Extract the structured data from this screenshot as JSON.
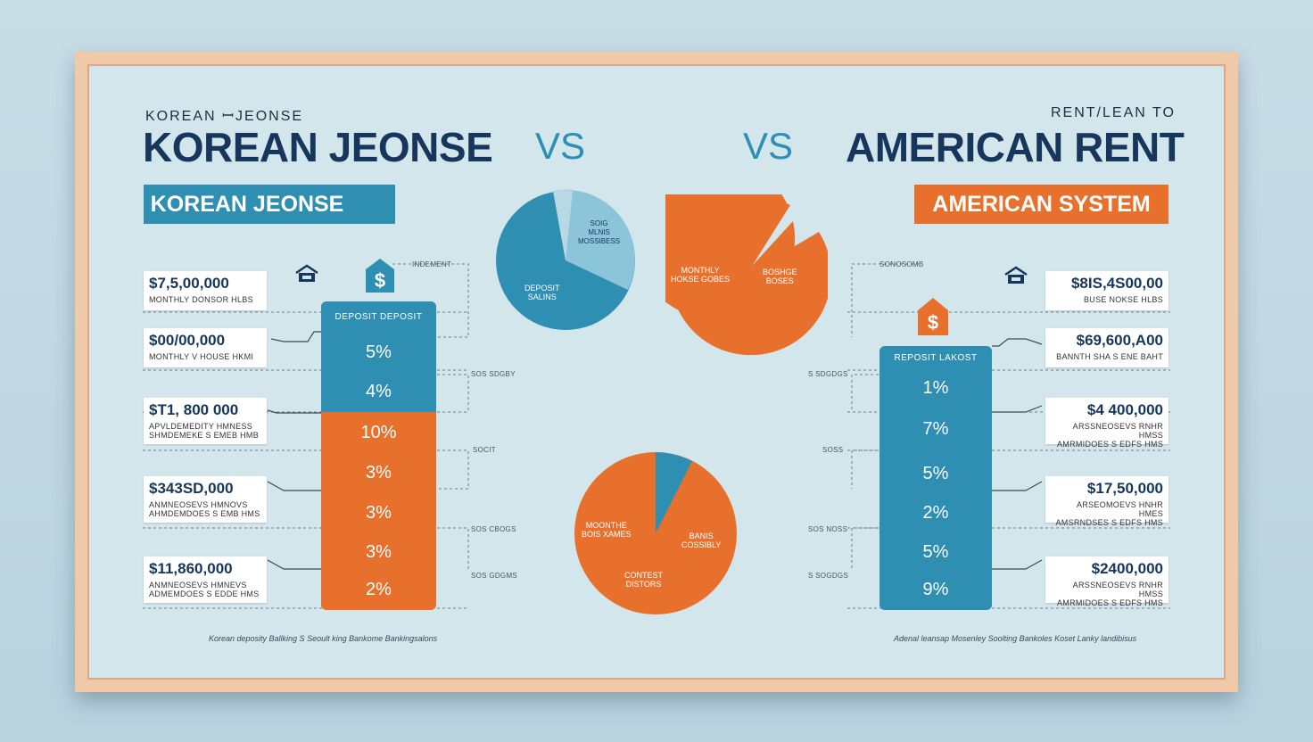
{
  "left": {
    "small_title": "KOREAN ꟷJEONSE",
    "title": "KOREAN JEONSE",
    "banner": "KOREAN JEONSE",
    "bar_header": "DEPOSIT DEPOSIT",
    "bar_segments": [
      "5%",
      "4%",
      "10%",
      "3%",
      "3%",
      "3%",
      "2%"
    ],
    "cards": [
      {
        "amount": "$7,5,00,000",
        "desc": "MONTHLY DONSOR HLBS"
      },
      {
        "amount": "$00/00,000",
        "desc": "MONTHLY V HOUSE HKMI"
      },
      {
        "amount": "$T1, 800 000",
        "desc": "APVLDEMEDITY HMNESS\nSHMDEMEKE S EMEB HMB"
      },
      {
        "amount": "$343SD,000",
        "desc": "ANMNEOSEVS HMNOVS\nAHMDEMDOES S EMB HMS"
      },
      {
        "amount": "$11,860,000",
        "desc": "ANMNEOSEVS HMNEVS\nADMEMDOES S EDDE HMS"
      }
    ],
    "side_notes": [
      "INDEMENT",
      "SOS SDGBY",
      "SOCIT",
      "SOS CBOGS",
      "SOS GDGMS"
    ],
    "footer": "Korean deposity Ballking S Seoult king Bankome Bankingsalons"
  },
  "right": {
    "small_title": "RENT/LEAN TO",
    "title": "AMERICAN RENT",
    "banner": "AMERICAN SYSTEM",
    "bar_header": "REPOSIT LAKOST",
    "bar_segments": [
      "1%",
      "7%",
      "5%",
      "2%",
      "5%",
      "9%"
    ],
    "cards": [
      {
        "amount": "$8IS,4S00,00",
        "desc": "BUSE     NOKSE HLBS"
      },
      {
        "amount": "$69,600,A00",
        "desc": "BANNTH SHA S ENE BAHT"
      },
      {
        "amount": "$4 400,000",
        "desc": "ARSSNEOSEVS RNHR HMSS\nAMRMIDOES S EDFS HMS"
      },
      {
        "amount": "$17,50,000",
        "desc": "ARSEOMOEVS HNHR HMES\nAMSRNDSES S EDFS HMS"
      },
      {
        "amount": "$2400,000",
        "desc": "ARSSNEOSEVS RNHR HMSS\nAMRMIDOES S EDFS HMS"
      }
    ],
    "side_notes": [
      "SONOSOMB",
      "S SDGDGS",
      "SOSS",
      "SOS NOSS",
      "S SOGDGS"
    ],
    "footer": "Adenal leansap Mosenley Soolting Bankoles Koset Lanky landibisus"
  },
  "vs_left": "VS",
  "vs_right": "VS",
  "pies": {
    "top_left": {
      "labels": [
        "DEPOSIT\nSALINS",
        "SOIG\nMLNIS\nMOSSIBESS"
      ]
    },
    "top_right": {
      "labels": [
        "MONTHLY\nHOKSE GOBES",
        "BOSHGE\nBOSES"
      ]
    },
    "bottom": {
      "labels": [
        "MOONTHE\nBOIS XAMES",
        "BANIS\nCOSSIBLY",
        "CONTEST\nDISTORS"
      ]
    }
  },
  "colors": {
    "blue": "#2f8fb3",
    "light_blue": "#8cc4da",
    "orange": "#e8702d",
    "navy": "#17365c"
  },
  "icons": [
    "house-icon",
    "dollar-tag-icon"
  ]
}
